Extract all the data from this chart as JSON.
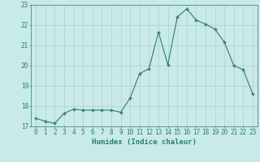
{
  "x": [
    0,
    1,
    2,
    3,
    4,
    5,
    6,
    7,
    8,
    9,
    10,
    11,
    12,
    13,
    14,
    15,
    16,
    17,
    18,
    19,
    20,
    21,
    22,
    23
  ],
  "y": [
    17.4,
    17.25,
    17.15,
    17.65,
    17.85,
    17.8,
    17.8,
    17.8,
    17.8,
    17.7,
    18.4,
    19.6,
    19.85,
    21.65,
    20.05,
    22.4,
    22.8,
    22.25,
    22.05,
    21.8,
    21.15,
    20.0,
    19.8,
    18.6
  ],
  "line_color": "#2e7d6e",
  "bg_color": "#c8eae8",
  "grid_color": "#b0cfcc",
  "xlabel": "Humidex (Indice chaleur)",
  "xlabel_color": "#2e7d6e",
  "tick_color": "#2e7d6e",
  "ylim": [
    17,
    23
  ],
  "xlim": [
    -0.5,
    23.5
  ],
  "yticks": [
    17,
    18,
    19,
    20,
    21,
    22,
    23
  ],
  "xticks": [
    0,
    1,
    2,
    3,
    4,
    5,
    6,
    7,
    8,
    9,
    10,
    11,
    12,
    13,
    14,
    15,
    16,
    17,
    18,
    19,
    20,
    21,
    22,
    23
  ],
  "tick_fontsize": 5.5,
  "xlabel_fontsize": 6.5
}
